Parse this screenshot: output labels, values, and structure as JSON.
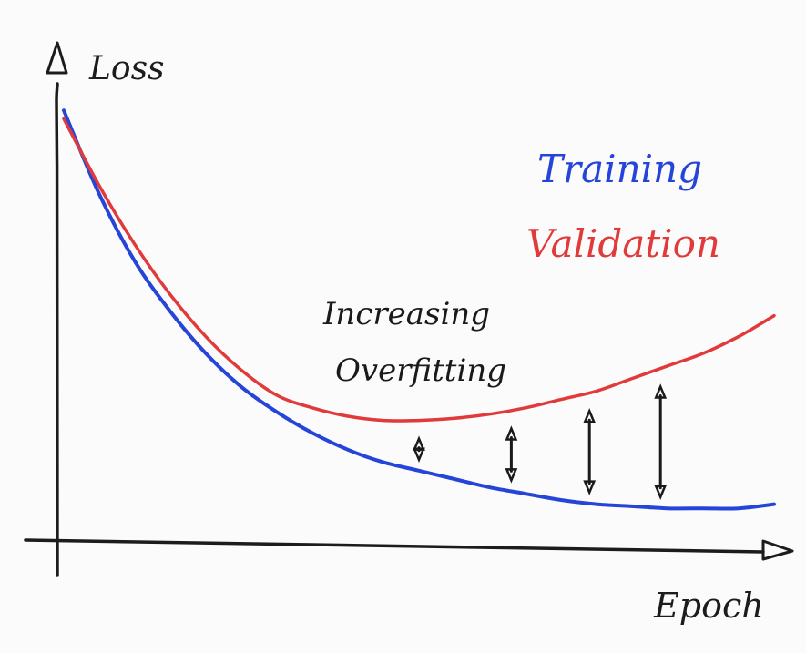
{
  "chart_data": {
    "type": "line",
    "title": "",
    "xlabel": "Epoch",
    "ylabel": "Loss",
    "grid": false,
    "legend_placement": "top-right",
    "ticks": "none",
    "x": [
      0,
      0.05,
      0.1,
      0.15,
      0.2,
      0.25,
      0.3,
      0.35,
      0.4,
      0.45,
      0.5,
      0.55,
      0.6,
      0.65,
      0.7,
      0.75,
      0.8,
      0.85,
      0.9,
      0.95,
      1.0
    ],
    "xlim": [
      0,
      1
    ],
    "ylim": [
      0,
      1
    ],
    "series": [
      {
        "name": "Training",
        "color": "#2545d8",
        "values": [
          0.98,
          0.78,
          0.62,
          0.5,
          0.4,
          0.32,
          0.26,
          0.21,
          0.17,
          0.14,
          0.12,
          0.1,
          0.08,
          0.065,
          0.05,
          0.04,
          0.035,
          0.03,
          0.03,
          0.03,
          0.04
        ]
      },
      {
        "name": "Validation",
        "color": "#e03a3a",
        "values": [
          0.96,
          0.8,
          0.66,
          0.54,
          0.44,
          0.36,
          0.3,
          0.27,
          0.25,
          0.24,
          0.24,
          0.245,
          0.255,
          0.27,
          0.29,
          0.31,
          0.34,
          0.37,
          0.4,
          0.44,
          0.49
        ]
      }
    ],
    "annotations": [
      {
        "text_lines": [
          "Increasing",
          "Overfitting"
        ],
        "color": "#1a1a1a"
      }
    ],
    "gap_arrows_x": [
      0.5,
      0.63,
      0.74,
      0.84
    ]
  }
}
